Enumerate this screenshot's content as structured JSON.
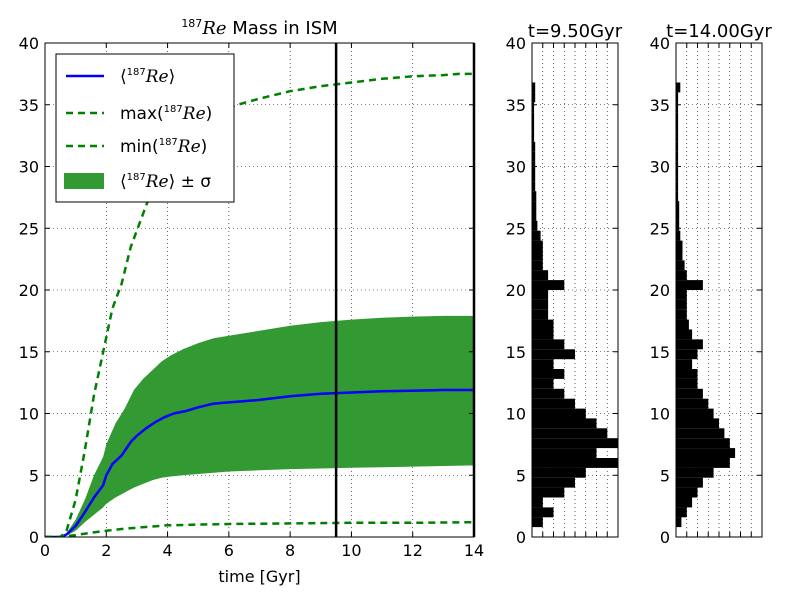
{
  "chart_data": [
    {
      "type": "line",
      "title_iso": "187",
      "title_sym": "Re",
      "title_rest": " Mass in ISM",
      "xlabel": "time [Gyr]",
      "ylabel": "",
      "xlim": [
        0,
        14
      ],
      "ylim": [
        0,
        40
      ],
      "xticks": [
        "0",
        "2",
        "4",
        "6",
        "8",
        "10",
        "12",
        "14"
      ],
      "yticks": [
        "0",
        "5",
        "10",
        "15",
        "20",
        "25",
        "30",
        "35",
        "40"
      ],
      "grid": true,
      "legend_position": "top-left",
      "vlines": [
        9.5,
        14.0
      ],
      "series": [
        {
          "name_pre": "⟨",
          "name_iso": "187",
          "name_sym": "Re",
          "name_post": "⟩",
          "color": "#0000ff",
          "style": "solid",
          "x": [
            0,
            0.5,
            0.7,
            1.0,
            1.3,
            1.6,
            1.9,
            2.0,
            2.2,
            2.5,
            2.8,
            3.0,
            3.3,
            3.6,
            3.9,
            4.2,
            4.6,
            5.0,
            5.5,
            6.0,
            7.0,
            8.0,
            9.0,
            10.0,
            11.0,
            12.0,
            13.0,
            14.0
          ],
          "y": [
            0,
            0,
            0.2,
            0.9,
            2.0,
            3.2,
            4.2,
            5.0,
            5.9,
            6.6,
            7.7,
            8.2,
            8.8,
            9.3,
            9.7,
            10.0,
            10.2,
            10.5,
            10.8,
            10.9,
            11.1,
            11.4,
            11.6,
            11.7,
            11.8,
            11.85,
            11.9,
            11.9
          ]
        },
        {
          "name_pre": "max(",
          "name_iso": "187",
          "name_sym": "Re",
          "name_post": ")",
          "color": "#008000",
          "style": "dashed",
          "x": [
            0,
            0.5,
            0.7,
            1.0,
            1.3,
            1.6,
            1.9,
            2.2,
            2.5,
            2.8,
            3.1,
            3.4,
            3.7,
            4.0,
            4.3,
            4.6,
            5.0,
            5.5,
            6.0,
            7.0,
            8.0,
            9.0,
            10.0,
            11.0,
            12.0,
            13.0,
            13.5,
            14.0
          ],
          "y": [
            0,
            0,
            0.5,
            3.0,
            7.0,
            11.5,
            15.0,
            18.5,
            20.5,
            23.5,
            25.5,
            27.5,
            29.5,
            30.5,
            31.5,
            32.5,
            33.5,
            34.2,
            34.8,
            35.5,
            36.1,
            36.5,
            36.8,
            37.1,
            37.3,
            37.4,
            37.5,
            37.5
          ]
        },
        {
          "name_pre": "min(",
          "name_iso": "187",
          "name_sym": "Re",
          "name_post": ")",
          "color": "#008000",
          "style": "dashed",
          "x": [
            0,
            0.5,
            1.0,
            1.5,
            2.0,
            2.5,
            3.0,
            3.5,
            4.0,
            5.0,
            6.0,
            8.0,
            10.0,
            12.0,
            14.0
          ],
          "y": [
            0,
            0,
            0.15,
            0.35,
            0.5,
            0.65,
            0.75,
            0.85,
            0.95,
            1.0,
            1.05,
            1.1,
            1.15,
            1.15,
            1.2
          ]
        }
      ],
      "band": {
        "name_pre": "⟨",
        "name_iso": "187",
        "name_sym": "Re",
        "name_post": "⟩ ± σ",
        "color": "#339933",
        "x": [
          0,
          0.5,
          0.7,
          1.0,
          1.3,
          1.6,
          1.9,
          2.0,
          2.3,
          2.6,
          2.9,
          3.2,
          3.5,
          3.8,
          4.1,
          4.5,
          5.0,
          5.5,
          6.0,
          7.0,
          8.0,
          9.0,
          10.0,
          11.0,
          12.0,
          13.0,
          14.0
        ],
        "upper": [
          0,
          0,
          0.3,
          1.4,
          3.0,
          5.0,
          6.5,
          7.5,
          9.2,
          10.4,
          11.9,
          12.8,
          13.5,
          14.2,
          14.7,
          15.2,
          15.7,
          16.1,
          16.3,
          16.7,
          17.1,
          17.4,
          17.6,
          17.75,
          17.85,
          17.9,
          17.9
        ],
        "lower": [
          0,
          0,
          0.1,
          0.5,
          1.2,
          1.8,
          2.4,
          2.7,
          3.2,
          3.6,
          4.0,
          4.3,
          4.6,
          4.8,
          4.9,
          5.0,
          5.1,
          5.2,
          5.3,
          5.4,
          5.5,
          5.55,
          5.6,
          5.65,
          5.7,
          5.75,
          5.8
        ]
      }
    },
    {
      "type": "bar",
      "orientation": "horizontal",
      "title": "t=9.50Gyr",
      "ylim": [
        0,
        40
      ],
      "yticks": [
        "0",
        "5",
        "10",
        "15",
        "20",
        "25",
        "30",
        "35",
        "40"
      ],
      "bin_width": 0.8,
      "bins": [
        1.2,
        2.0,
        2.8,
        3.6,
        4.4,
        5.2,
        6.0,
        6.8,
        7.6,
        8.4,
        9.2,
        10.0,
        10.8,
        11.6,
        12.4,
        13.2,
        14.0,
        14.8,
        15.6,
        16.4,
        17.2,
        18.0,
        18.8,
        19.6,
        20.4,
        21.2,
        22.0,
        22.8,
        23.6,
        24.4,
        25.2,
        26.0,
        26.8,
        27.6,
        28.4,
        29.2,
        30.0,
        30.8,
        31.6,
        32.4,
        33.2,
        34.0,
        34.8,
        35.6,
        36.4
      ],
      "counts": [
        1,
        2,
        1,
        3,
        4,
        5,
        8,
        6,
        8,
        7,
        6,
        5,
        4,
        3,
        2,
        3,
        2,
        4,
        3,
        2,
        2,
        1.5,
        1.5,
        1.5,
        3,
        1.5,
        1,
        1,
        1,
        0.8,
        0.5,
        0.4,
        0.4,
        0.4,
        0.3,
        0.3,
        0.3,
        0.3,
        0.3,
        0.2,
        0.2,
        0.2,
        0.2,
        0.3,
        0.3
      ]
    },
    {
      "type": "bar",
      "orientation": "horizontal",
      "title": "t=14.00Gyr",
      "ylim": [
        0,
        40
      ],
      "yticks": [
        "0",
        "5",
        "10",
        "15",
        "20",
        "25",
        "30",
        "35",
        "40"
      ],
      "bin_width": 0.8,
      "bins": [
        1.2,
        2.0,
        2.8,
        3.6,
        4.4,
        5.2,
        6.0,
        6.8,
        7.6,
        8.4,
        9.2,
        10.0,
        10.8,
        11.6,
        12.4,
        13.2,
        14.0,
        14.8,
        15.6,
        16.4,
        17.2,
        18.0,
        18.8,
        19.6,
        20.4,
        21.2,
        22.0,
        22.8,
        23.6,
        24.4,
        25.2,
        26.0,
        26.8,
        27.6,
        28.4,
        29.2,
        30.0,
        30.8,
        31.6,
        32.4,
        33.2,
        34.0,
        34.8,
        35.6,
        36.4
      ],
      "counts": [
        0.5,
        1,
        1.5,
        2,
        2.5,
        3.5,
        5,
        5.5,
        5,
        4.5,
        4,
        3.5,
        3,
        2.5,
        2,
        2,
        1.5,
        2,
        2.5,
        1.5,
        1.2,
        1,
        1,
        1,
        2.5,
        1,
        0.8,
        0.6,
        0.6,
        0.4,
        0.3,
        0.3,
        0.3,
        0.2,
        0.2,
        0.2,
        0.2,
        0.2,
        0.2,
        0.2,
        0.2,
        0.2,
        0.2,
        0.2,
        0.4
      ]
    }
  ]
}
